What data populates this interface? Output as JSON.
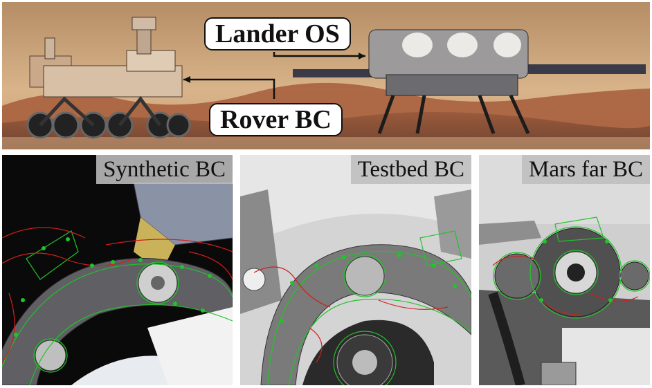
{
  "top_panel": {
    "callouts": {
      "lander": "Lander OS",
      "rover": "Rover BC"
    }
  },
  "bottom_panels": [
    {
      "label": "Synthetic BC"
    },
    {
      "label": "Testbed BC"
    },
    {
      "label": "Mars far BC"
    }
  ],
  "colors": {
    "model_edges_green": "#22c32a",
    "model_edges_red": "#d21e1e",
    "sky": "#caa57a",
    "ground": "#8a5a3a"
  }
}
